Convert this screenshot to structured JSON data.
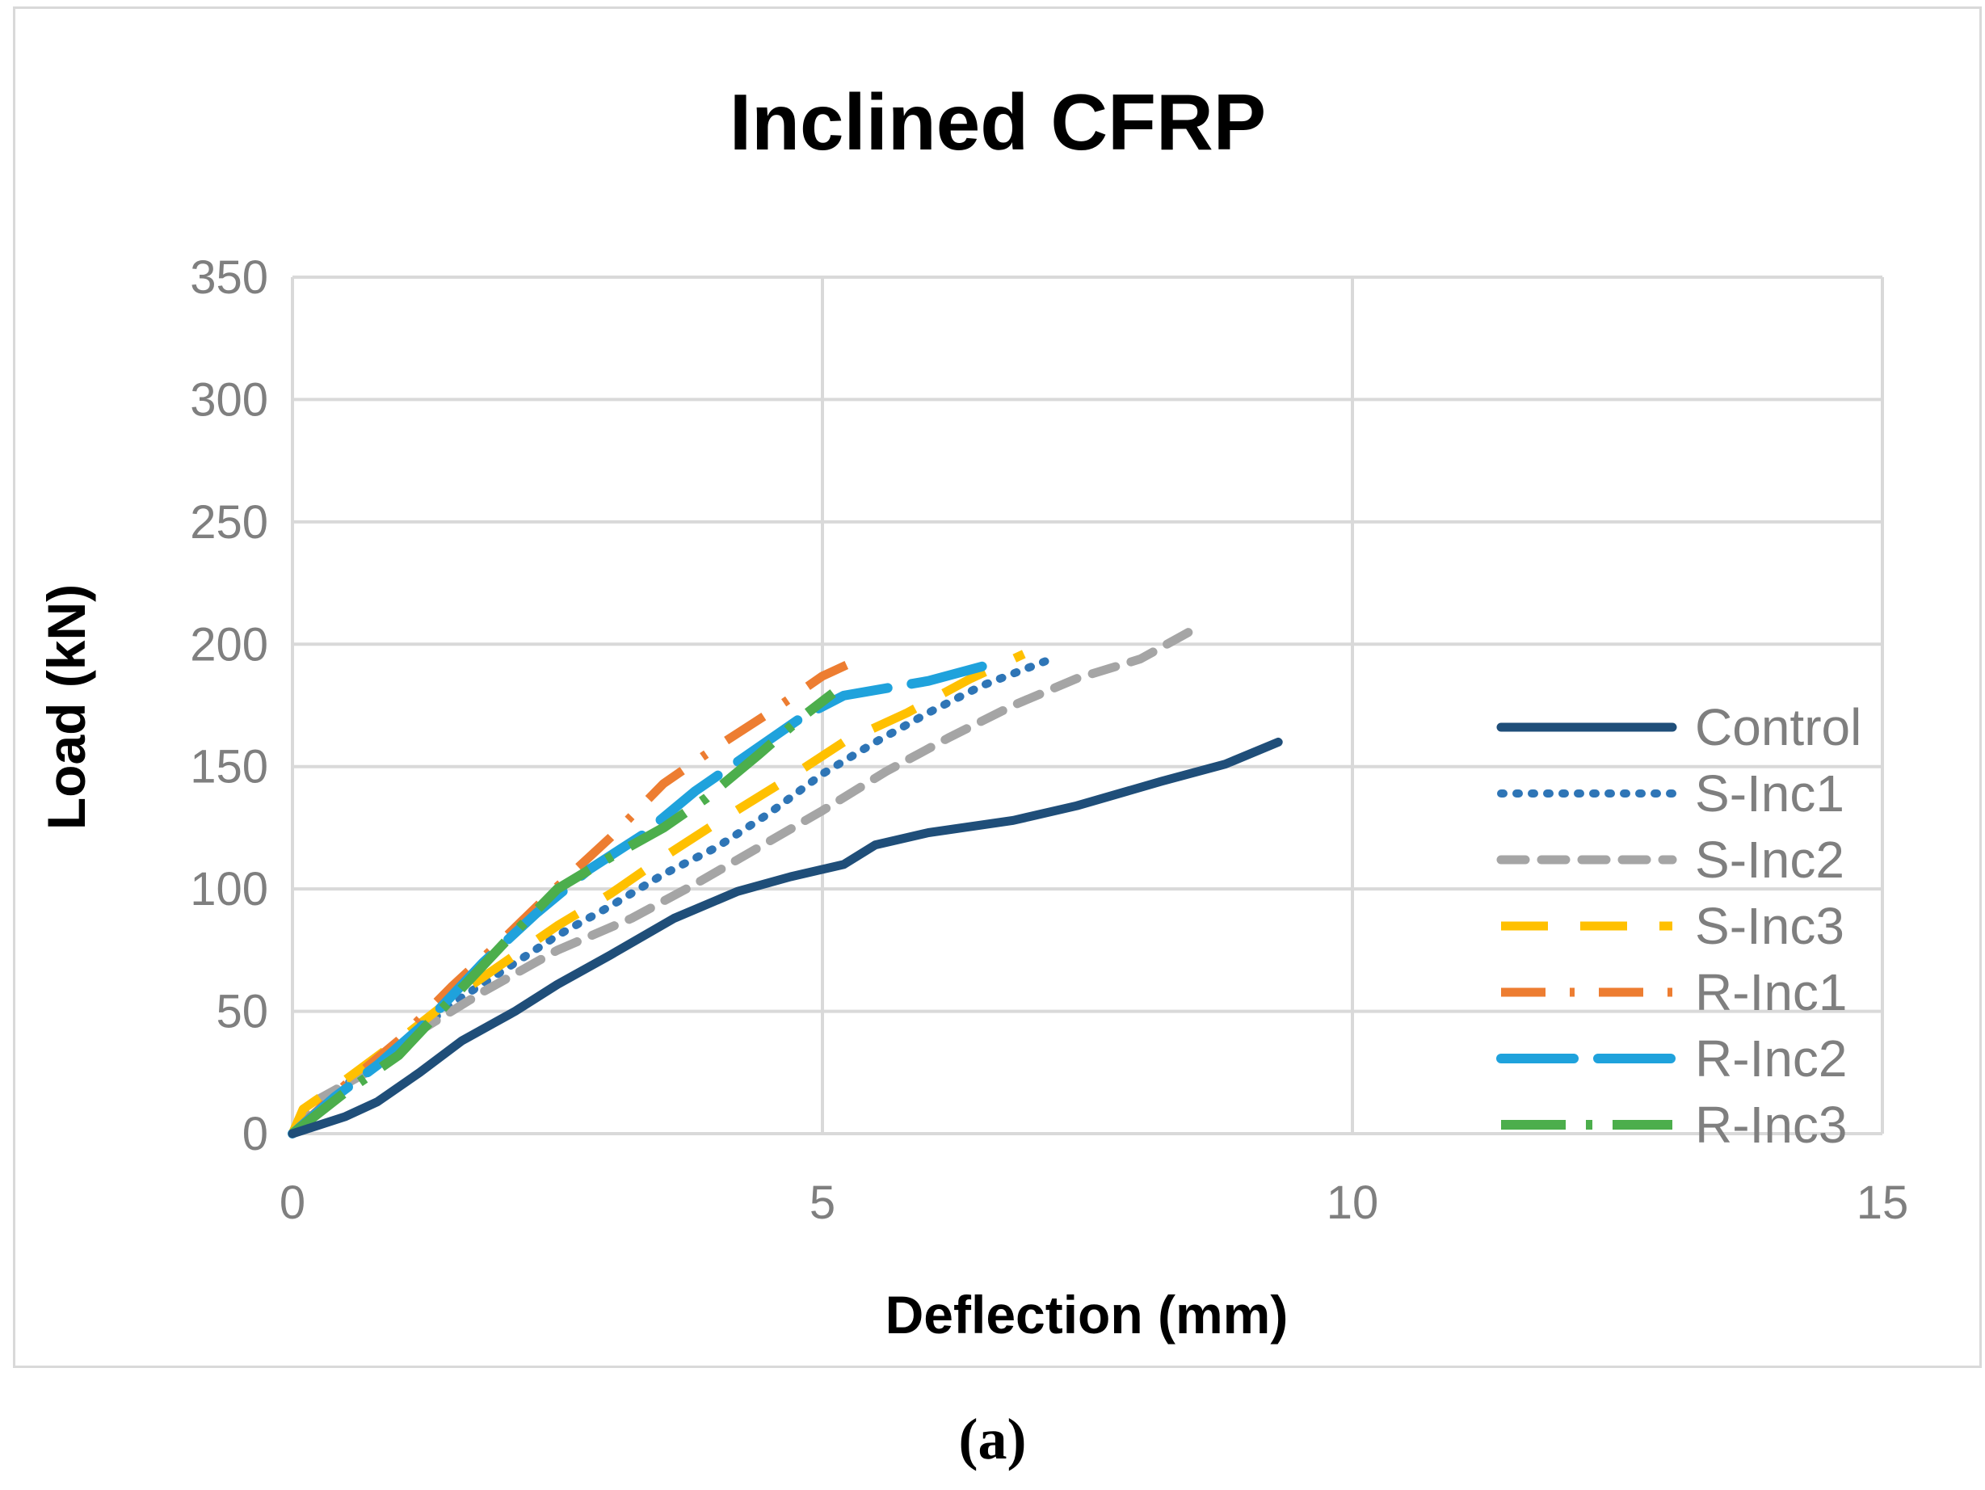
{
  "caption": "(a)",
  "chart_data": {
    "type": "line",
    "title": "Inclined CFRP",
    "xlabel": "Deflection (mm)",
    "ylabel": "Load (kN)",
    "xlim": [
      0,
      15
    ],
    "ylim": [
      0,
      350
    ],
    "xticks": [
      "0",
      "5",
      "10",
      "15"
    ],
    "yticks": [
      "0",
      "50",
      "100",
      "150",
      "200",
      "250",
      "300",
      "350"
    ],
    "grid": true,
    "legend_position": "right",
    "series": [
      {
        "name": "Control",
        "color": "#1f4e79",
        "dash": "solid",
        "x": [
          0,
          0.5,
          0.8,
          1.2,
          1.6,
          2.1,
          2.5,
          3.0,
          3.6,
          4.2,
          4.7,
          5.2,
          5.5,
          6.0,
          6.8,
          7.4,
          8.2,
          8.8,
          9.3
        ],
        "y": [
          0,
          7,
          13,
          25,
          38,
          50,
          61,
          73,
          88,
          99,
          105,
          110,
          118,
          123,
          128,
          134,
          144,
          151,
          160
        ]
      },
      {
        "name": "S-Inc1",
        "color": "#2e75b6",
        "dash": "dot",
        "x": [
          0,
          0.5,
          1.0,
          1.5,
          2.0,
          2.5,
          3.0,
          3.5,
          4.0,
          4.5,
          5.0,
          5.5,
          6.0,
          6.5,
          7.1
        ],
        "y": [
          0,
          20,
          35,
          53,
          67,
          81,
          93,
          106,
          117,
          131,
          147,
          160,
          172,
          183,
          193
        ]
      },
      {
        "name": "S-Inc2",
        "color": "#a5a5a5",
        "dash": "dash",
        "x": [
          0,
          0.2,
          0.7,
          1.2,
          1.8,
          2.5,
          3.2,
          3.8,
          4.4,
          5.0,
          5.6,
          6.2,
          6.8,
          7.4,
          8.0,
          8.5
        ],
        "y": [
          0,
          13,
          25,
          42,
          58,
          75,
          88,
          102,
          117,
          132,
          148,
          162,
          175,
          186,
          194,
          206
        ]
      },
      {
        "name": "S-Inc3",
        "color": "#ffc000",
        "dash": "longdash",
        "x": [
          0,
          0.1,
          0.5,
          1.0,
          1.5,
          2.0,
          2.5,
          3.0,
          3.5,
          4.0,
          4.6,
          5.2,
          5.8,
          6.4,
          6.9
        ],
        "y": [
          0,
          10,
          22,
          38,
          55,
          70,
          85,
          98,
          113,
          127,
          143,
          160,
          172,
          186,
          196
        ]
      },
      {
        "name": "R-Inc1",
        "color": "#ed7d31",
        "dash": "dashdot",
        "x": [
          0,
          0.5,
          1.0,
          1.5,
          2.0,
          2.5,
          3.0,
          3.5,
          4.0,
          4.5,
          5.0,
          5.3
        ],
        "y": [
          0,
          20,
          38,
          60,
          80,
          101,
          121,
          143,
          158,
          172,
          187,
          193
        ]
      },
      {
        "name": "R-Inc2",
        "color": "#1fa2dc",
        "dash": "longdash2",
        "x": [
          0,
          0.4,
          0.8,
          1.3,
          1.8,
          2.3,
          2.8,
          3.3,
          3.8,
          4.3,
          4.8,
          5.2,
          5.6,
          6.0,
          6.6
        ],
        "y": [
          0,
          15,
          28,
          47,
          70,
          90,
          108,
          122,
          140,
          155,
          170,
          179,
          182,
          185,
          192
        ]
      },
      {
        "name": "R-Inc3",
        "color": "#4cae4c",
        "dash": "longdashdot",
        "x": [
          0,
          0.5,
          1.0,
          1.5,
          2.0,
          2.5,
          3.0,
          3.5,
          3.9,
          4.4,
          4.8,
          5.1
        ],
        "y": [
          0,
          17,
          32,
          55,
          78,
          100,
          113,
          125,
          137,
          155,
          170,
          180
        ]
      }
    ]
  }
}
